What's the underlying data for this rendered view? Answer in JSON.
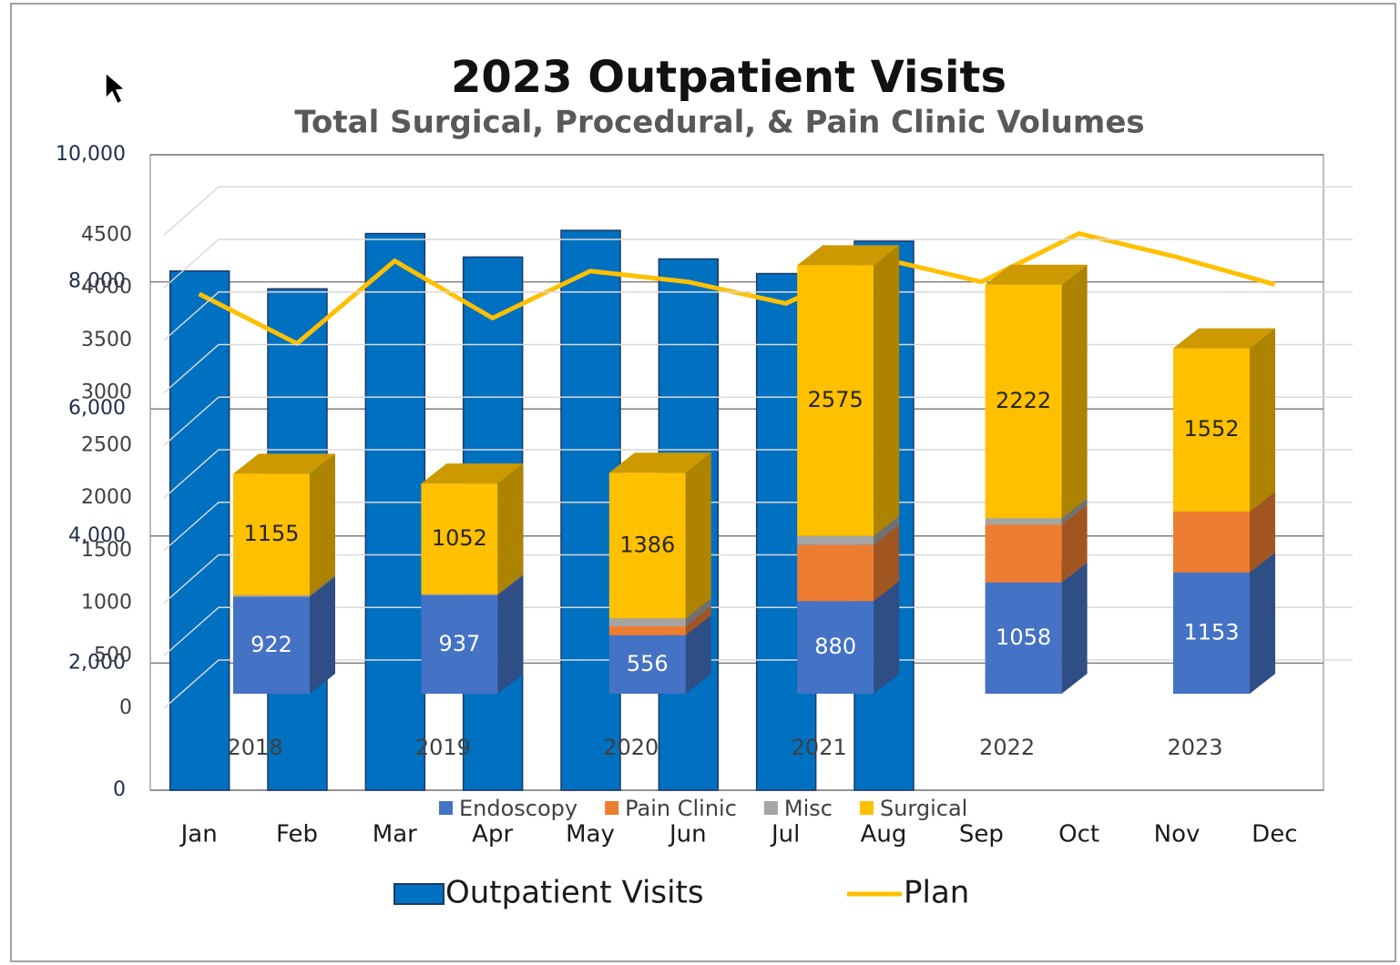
{
  "chart_data": [
    {
      "type": "bar",
      "title": "2023 Outpatient Visits",
      "subtitle": "Total Surgical, Procedural, & Pain Clinic Volumes",
      "categories": [
        "Jan",
        "Feb",
        "Mar",
        "Apr",
        "May",
        "Jun",
        "Jul",
        "Aug",
        "Sep",
        "Oct",
        "Nov",
        "Dec"
      ],
      "series": [
        {
          "name": "Outpatient Visits",
          "type": "bar",
          "color": "#0070c0",
          "values": [
            8170,
            7890,
            8760,
            8390,
            8810,
            8360,
            8130,
            8640,
            null,
            null,
            null,
            null
          ]
        },
        {
          "name": "Plan",
          "type": "line",
          "color": "#ffc000",
          "values": [
            7810,
            7030,
            8330,
            7430,
            8170,
            8000,
            7660,
            8360,
            8000,
            8760,
            8390,
            7960
          ]
        }
      ],
      "ylim": [
        0,
        10000
      ],
      "yticks": [
        0,
        {
          "value": 2000,
          "label": "2,000"
        },
        {
          "value": 4000,
          "label": "4,000"
        },
        {
          "value": 6000,
          "label": "6,000"
        },
        {
          "value": 8000,
          "label": "8,000"
        },
        {
          "value": 10000,
          "label": "10,000"
        }
      ],
      "grid": true,
      "legend": "bottom"
    },
    {
      "type": "stacked_bar",
      "categories": [
        "2018",
        "2019",
        "2020",
        "2021",
        "2022",
        "2023"
      ],
      "series": [
        {
          "name": "Endoscopy",
          "color": "#4472c4",
          "values": [
            922,
            937,
            556,
            880,
            1058,
            1153
          ],
          "data_labels": true
        },
        {
          "name": "Pain Clinic",
          "color": "#ed7d31",
          "values": [
            0,
            0,
            85,
            535,
            550,
            580
          ]
        },
        {
          "name": "Misc",
          "color": "#a5a5a5",
          "values": [
            15,
            10,
            75,
            85,
            60,
            0
          ]
        },
        {
          "name": "Surgical",
          "color": "#ffc000",
          "values": [
            1155,
            1052,
            1386,
            2575,
            2222,
            1552
          ],
          "data_labels": true
        }
      ],
      "ylim": [
        0,
        4500
      ],
      "yticks": [
        0,
        500,
        1000,
        1500,
        2000,
        2500,
        3000,
        3500,
        4000,
        4500
      ],
      "grid": true,
      "legend": "bottom"
    }
  ]
}
